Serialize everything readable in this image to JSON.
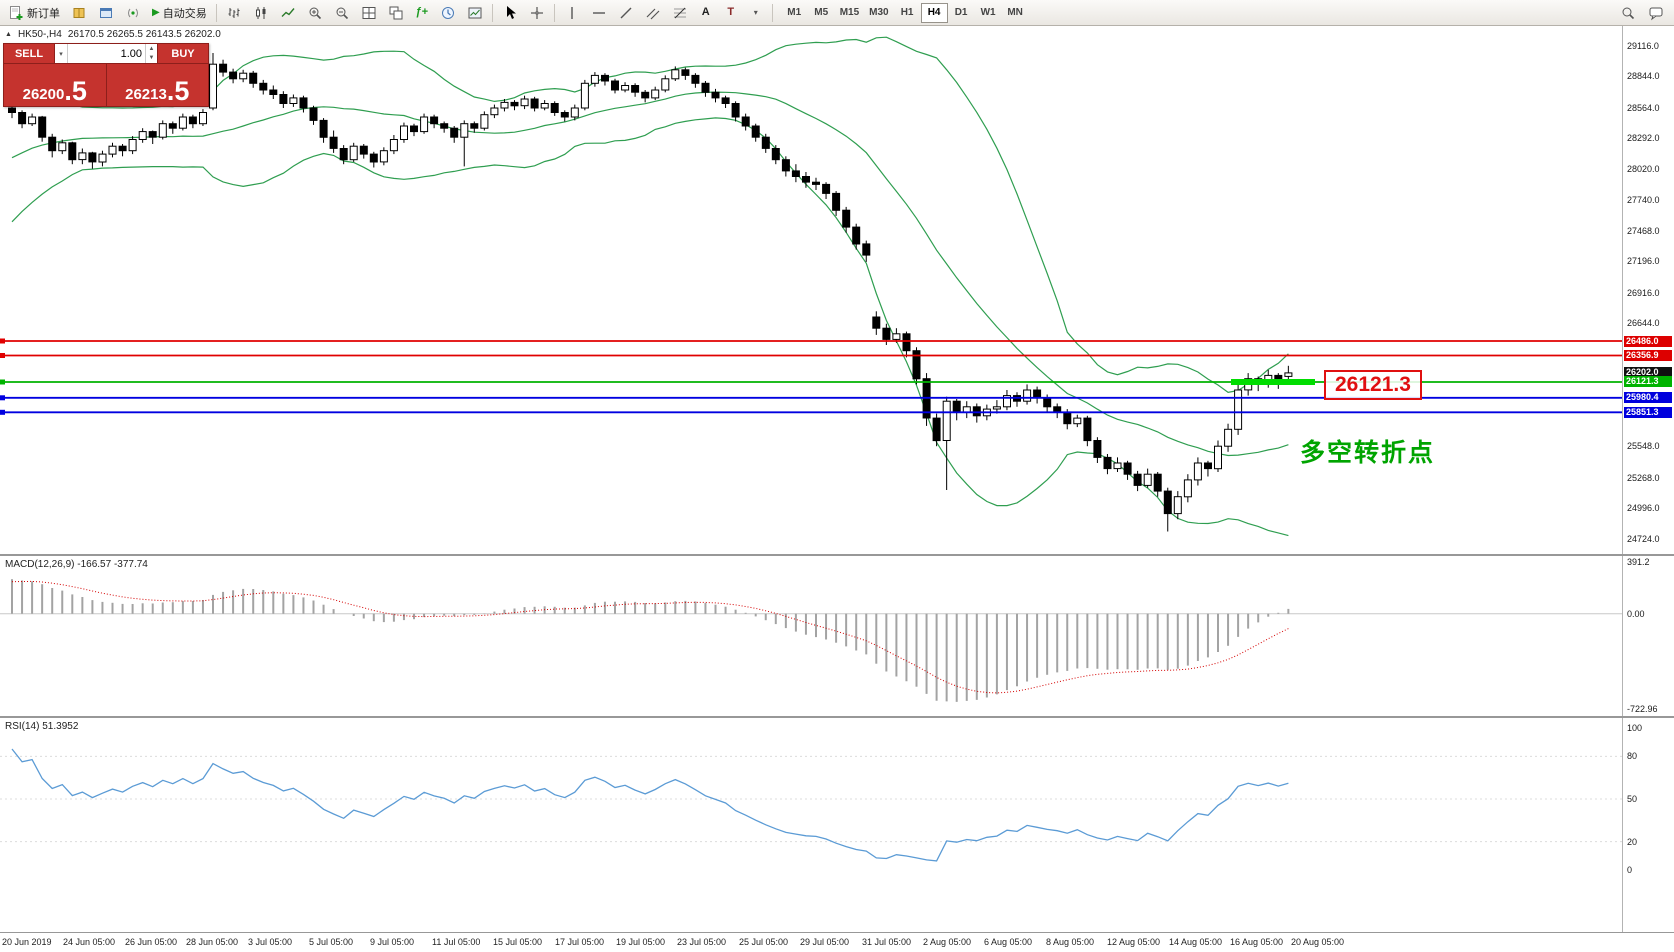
{
  "toolbar": {
    "new_order_label": "新订单",
    "auto_trading_label": "自动交易",
    "timeframes": [
      "M1",
      "M5",
      "M15",
      "M30",
      "H1",
      "H4",
      "D1",
      "W1",
      "MN"
    ],
    "active_timeframe": "H4",
    "icon_glyphs": {
      "auto_trading_play": "▶",
      "text_tool": "A",
      "label_tool": "T",
      "shapes_dropdown": "▾",
      "indicators": "ƒ+",
      "symbol_marker": "▲"
    }
  },
  "chart": {
    "symbol_period": "HK50-,H4",
    "ohlc": "26170.5 26265.5 26143.5 26202.0"
  },
  "trade_panel": {
    "sell_label": "SELL",
    "buy_label": "BUY",
    "volume": "1.00",
    "sell_price_main": "26200",
    "sell_price_big": ".5",
    "buy_price_main": "26213",
    "buy_price_big": ".5"
  },
  "annotations": {
    "price_callout": "26121.3",
    "turning_point": "多空转折点"
  },
  "price_scale": {
    "regular": [
      {
        "text": "29116.0",
        "price": 29116
      },
      {
        "text": "28844.0",
        "price": 28844
      },
      {
        "text": "28564.0",
        "price": 28564
      },
      {
        "text": "28292.0",
        "price": 28292
      },
      {
        "text": "28020.0",
        "price": 28020
      },
      {
        "text": "27740.0",
        "price": 27740
      },
      {
        "text": "27468.0",
        "price": 27468
      },
      {
        "text": "27196.0",
        "price": 27196
      },
      {
        "text": "26916.0",
        "price": 26916
      },
      {
        "text": "26644.0",
        "price": 26644
      },
      {
        "text": "25548.0",
        "price": 25548
      },
      {
        "text": "25268.0",
        "price": 25268
      },
      {
        "text": "24996.0",
        "price": 24996
      },
      {
        "text": "24724.0",
        "price": 24724
      }
    ],
    "tags": [
      {
        "text": "26486.0",
        "price": 26486.0,
        "bg": "#dd0000"
      },
      {
        "text": "26356.9",
        "price": 26356.9,
        "bg": "#dd0000"
      },
      {
        "text": "26202.0",
        "price": 26202.0,
        "bg": "#101010"
      },
      {
        "text": "26121.3",
        "price": 26121.3,
        "bg": "#00b300"
      },
      {
        "text": "25980.4",
        "price": 25980.4,
        "bg": "#0000dd"
      },
      {
        "text": "25851.3",
        "price": 25851.3,
        "bg": "#0000dd"
      }
    ]
  },
  "macd_panel": {
    "label": "MACD(12,26,9) -166.57 -377.74",
    "scale": [
      {
        "text": "391.2",
        "value": 391.2
      },
      {
        "text": "0.00",
        "value": 0
      },
      {
        "text": "-722.96",
        "value": -722.96
      }
    ]
  },
  "rsi_panel": {
    "label": "RSI(14) 51.3952",
    "scale": [
      {
        "text": "100",
        "value": 100
      },
      {
        "text": "80",
        "value": 80
      },
      {
        "text": "50",
        "value": 50
      },
      {
        "text": "20",
        "value": 20
      },
      {
        "text": "0",
        "value": 0
      }
    ],
    "levels": [
      80,
      50,
      20
    ]
  },
  "time_axis": [
    "20 Jun 2019",
    "24 Jun 05:00",
    "26 Jun 05:00",
    "28 Jun 05:00",
    "3 Jul 05:00",
    "5 Jul 05:00",
    "9 Jul 05:00",
    "11 Jul 05:00",
    "15 Jul 05:00",
    "17 Jul 05:00",
    "19 Jul 05:00",
    "23 Jul 05:00",
    "25 Jul 05:00",
    "29 Jul 05:00",
    "31 Jul 05:00",
    "2 Aug 05:00",
    "6 Aug 05:00",
    "8 Aug 05:00",
    "12 Aug 05:00",
    "14 Aug 05:00",
    "16 Aug 05:00",
    "20 Aug 05:00"
  ],
  "chart_data": {
    "type": "candlestick",
    "symbol": "HK50-",
    "timeframe": "H4",
    "visible_price_range": [
      24590,
      29290
    ],
    "current_price": 26202.0,
    "hlines": [
      {
        "price": 26486.0,
        "color": "#e00000"
      },
      {
        "price": 26356.9,
        "color": "#e00000"
      },
      {
        "price": 26121.3,
        "color": "#00b300"
      },
      {
        "price": 25980.4,
        "color": "#0000e0"
      },
      {
        "price": 25851.3,
        "color": "#0000e0"
      }
    ],
    "highlight_segment": {
      "price": 26121.3,
      "color": "#00dd00"
    },
    "indicators": {
      "bollinger": {
        "period": 20,
        "deviation": 2,
        "color": "#2f9e50"
      },
      "macd": {
        "fast": 12,
        "slow": 26,
        "signal": 9,
        "value": -166.57,
        "signal_value": -377.74,
        "range": [
          -722.96,
          391.2
        ]
      },
      "rsi": {
        "period": 14,
        "value": 51.3952
      }
    },
    "pre_history_closes": [
      27250,
      27300,
      27380,
      27450,
      27400,
      27500,
      27600,
      27550,
      27650,
      27750,
      27800,
      27900,
      27850,
      27950,
      28050,
      28100,
      28200,
      28150,
      28250,
      28300,
      28250,
      28350,
      28400,
      28380,
      28450,
      28500
    ],
    "candles": [
      [
        28560,
        28590,
        28470,
        28520
      ],
      [
        28520,
        28540,
        28380,
        28420
      ],
      [
        28420,
        28510,
        28400,
        28480
      ],
      [
        28480,
        28490,
        28260,
        28300
      ],
      [
        28300,
        28330,
        28120,
        28180
      ],
      [
        28180,
        28280,
        28150,
        28250
      ],
      [
        28250,
        28260,
        28060,
        28100
      ],
      [
        28100,
        28200,
        28060,
        28160
      ],
      [
        28160,
        28170,
        28020,
        28080
      ],
      [
        28080,
        28180,
        28040,
        28150
      ],
      [
        28150,
        28250,
        28120,
        28220
      ],
      [
        28220,
        28240,
        28130,
        28180
      ],
      [
        28180,
        28310,
        28150,
        28280
      ],
      [
        28280,
        28380,
        28250,
        28350
      ],
      [
        28350,
        28360,
        28240,
        28300
      ],
      [
        28300,
        28450,
        28280,
        28420
      ],
      [
        28420,
        28440,
        28330,
        28380
      ],
      [
        28380,
        28510,
        28360,
        28480
      ],
      [
        28480,
        28500,
        28380,
        28420
      ],
      [
        28420,
        28550,
        28400,
        28520
      ],
      [
        28560,
        29050,
        28540,
        28950
      ],
      [
        28950,
        28990,
        28840,
        28880
      ],
      [
        28880,
        28910,
        28780,
        28820
      ],
      [
        28820,
        28900,
        28790,
        28870
      ],
      [
        28870,
        28890,
        28740,
        28780
      ],
      [
        28780,
        28810,
        28680,
        28720
      ],
      [
        28720,
        28760,
        28640,
        28680
      ],
      [
        28680,
        28710,
        28560,
        28600
      ],
      [
        28600,
        28680,
        28570,
        28650
      ],
      [
        28650,
        28670,
        28520,
        28560
      ],
      [
        28560,
        28580,
        28410,
        28450
      ],
      [
        28450,
        28470,
        28250,
        28300
      ],
      [
        28300,
        28360,
        28160,
        28200
      ],
      [
        28200,
        28230,
        28060,
        28100
      ],
      [
        28100,
        28250,
        28080,
        28220
      ],
      [
        28220,
        28240,
        28110,
        28150
      ],
      [
        28150,
        28170,
        28030,
        28080
      ],
      [
        28080,
        28210,
        28050,
        28180
      ],
      [
        28180,
        28320,
        28150,
        28280
      ],
      [
        28280,
        28430,
        28250,
        28400
      ],
      [
        28400,
        28420,
        28310,
        28350
      ],
      [
        28350,
        28510,
        28330,
        28480
      ],
      [
        28480,
        28500,
        28380,
        28420
      ],
      [
        28420,
        28440,
        28340,
        28380
      ],
      [
        28380,
        28400,
        28250,
        28300
      ],
      [
        28300,
        28450,
        28040,
        28420
      ],
      [
        28420,
        28440,
        28340,
        28380
      ],
      [
        28380,
        28530,
        28360,
        28500
      ],
      [
        28500,
        28590,
        28470,
        28560
      ],
      [
        28560,
        28640,
        28530,
        28610
      ],
      [
        28610,
        28630,
        28540,
        28580
      ],
      [
        28580,
        28670,
        28550,
        28640
      ],
      [
        28640,
        28660,
        28530,
        28560
      ],
      [
        28560,
        28630,
        28540,
        28600
      ],
      [
        28600,
        28620,
        28490,
        28520
      ],
      [
        28520,
        28540,
        28440,
        28480
      ],
      [
        28480,
        28590,
        28450,
        28560
      ],
      [
        28560,
        28810,
        28540,
        28780
      ],
      [
        28780,
        28880,
        28750,
        28850
      ],
      [
        28850,
        28870,
        28760,
        28800
      ],
      [
        28800,
        28820,
        28690,
        28720
      ],
      [
        28720,
        28790,
        28700,
        28760
      ],
      [
        28760,
        28780,
        28660,
        28700
      ],
      [
        28700,
        28720,
        28610,
        28650
      ],
      [
        28650,
        28750,
        28630,
        28720
      ],
      [
        28720,
        28850,
        28700,
        28820
      ],
      [
        28820,
        28930,
        28800,
        28900
      ],
      [
        28900,
        28920,
        28810,
        28850
      ],
      [
        28850,
        28870,
        28740,
        28780
      ],
      [
        28780,
        28800,
        28660,
        28700
      ],
      [
        28700,
        28730,
        28610,
        28650
      ],
      [
        28650,
        28670,
        28560,
        28600
      ],
      [
        28600,
        28620,
        28440,
        28480
      ],
      [
        28480,
        28510,
        28360,
        28400
      ],
      [
        28400,
        28420,
        28260,
        28300
      ],
      [
        28300,
        28330,
        28160,
        28200
      ],
      [
        28200,
        28230,
        28060,
        28100
      ],
      [
        28100,
        28130,
        27950,
        28000
      ],
      [
        28000,
        28060,
        27900,
        27950
      ],
      [
        27950,
        27990,
        27850,
        27900
      ],
      [
        27900,
        27940,
        27830,
        27880
      ],
      [
        27880,
        27900,
        27750,
        27800
      ],
      [
        27800,
        27820,
        27600,
        27650
      ],
      [
        27650,
        27680,
        27450,
        27500
      ],
      [
        27500,
        27530,
        27300,
        27350
      ],
      [
        27350,
        27380,
        27190,
        27250
      ],
      [
        26700,
        26750,
        26540,
        26600
      ],
      [
        26600,
        26640,
        26450,
        26500
      ],
      [
        26500,
        26600,
        26470,
        26550
      ],
      [
        26550,
        26570,
        26340,
        26400
      ],
      [
        26400,
        26430,
        26100,
        26150
      ],
      [
        26150,
        26200,
        25730,
        25800
      ],
      [
        25800,
        25840,
        25550,
        25600
      ],
      [
        25600,
        25990,
        25160,
        25950
      ],
      [
        25950,
        25970,
        25780,
        25850
      ],
      [
        25850,
        25950,
        25800,
        25900
      ],
      [
        25900,
        25930,
        25760,
        25820
      ],
      [
        25820,
        25920,
        25780,
        25880
      ],
      [
        25880,
        25960,
        25840,
        25900
      ],
      [
        25900,
        26050,
        25870,
        26000
      ],
      [
        26000,
        26030,
        25900,
        25950
      ],
      [
        25950,
        26100,
        25920,
        26050
      ],
      [
        26050,
        26080,
        25930,
        25980
      ],
      [
        25980,
        26010,
        25850,
        25900
      ],
      [
        25900,
        25930,
        25800,
        25850
      ],
      [
        25850,
        25880,
        25700,
        25750
      ],
      [
        25750,
        25830,
        25720,
        25800
      ],
      [
        25800,
        25820,
        25550,
        25600
      ],
      [
        25600,
        25630,
        25400,
        25450
      ],
      [
        25450,
        25480,
        25300,
        25350
      ],
      [
        25350,
        25450,
        25320,
        25400
      ],
      [
        25400,
        25420,
        25250,
        25300
      ],
      [
        25300,
        25330,
        25150,
        25200
      ],
      [
        25200,
        25350,
        25180,
        25300
      ],
      [
        25300,
        25320,
        25100,
        25150
      ],
      [
        25150,
        25180,
        24790,
        24950
      ],
      [
        24950,
        25150,
        24900,
        25100
      ],
      [
        25100,
        25300,
        25050,
        25250
      ],
      [
        25250,
        25450,
        25200,
        25400
      ],
      [
        25400,
        25420,
        25280,
        25350
      ],
      [
        25350,
        25600,
        25320,
        25550
      ],
      [
        25550,
        25750,
        25500,
        25700
      ],
      [
        25700,
        26100,
        25650,
        26050
      ],
      [
        26050,
        26200,
        26000,
        26150
      ],
      [
        26150,
        26170,
        26040,
        26100
      ],
      [
        26100,
        26230,
        26070,
        26180
      ],
      [
        26180,
        26200,
        26060,
        26120
      ],
      [
        26170.5,
        26265.5,
        26143.5,
        26202.0
      ]
    ]
  }
}
